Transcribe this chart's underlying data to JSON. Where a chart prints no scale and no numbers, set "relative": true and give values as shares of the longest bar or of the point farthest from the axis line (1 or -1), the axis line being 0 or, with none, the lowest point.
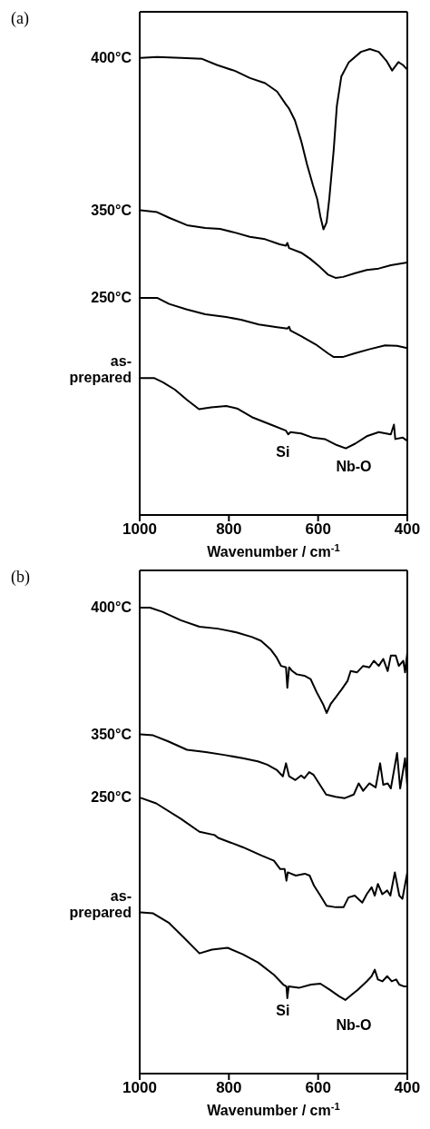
{
  "chart_data": [
    {
      "type": "line",
      "title": "(a)",
      "xlabel": "Wavenumber / cm$^{-1}$",
      "relative": true,
      "xlim": [
        1000,
        400
      ],
      "xticks": [
        1000,
        800,
        600,
        400
      ],
      "series": [
        {
          "name": "400°C",
          "color": "#000000",
          "x": [
            998,
            961,
            907,
            860,
            827,
            786,
            753,
            719,
            692,
            672,
            665,
            652,
            638,
            625,
            612,
            602,
            595,
            588,
            581,
            575,
            565,
            558,
            548,
            531,
            504,
            484,
            464,
            447,
            434,
            420,
            410,
            400
          ],
          "values": [
            0.981,
            0.983,
            0.981,
            0.979,
            0.966,
            0.953,
            0.938,
            0.927,
            0.909,
            0.881,
            0.872,
            0.847,
            0.803,
            0.753,
            0.709,
            0.678,
            0.641,
            0.613,
            0.628,
            0.678,
            0.784,
            0.878,
            0.941,
            0.972,
            0.994,
            1.0,
            0.994,
            0.975,
            0.954,
            0.972,
            0.966,
            0.956
          ]
        },
        {
          "name": "350°C",
          "color": "#000000",
          "x": [
            998,
            961,
            934,
            894,
            853,
            820,
            786,
            753,
            719,
            686,
            672,
            669,
            665,
            638,
            618,
            598,
            578,
            561,
            544,
            517,
            491,
            464,
            437,
            400
          ],
          "values": [
            0.654,
            0.65,
            0.638,
            0.622,
            0.616,
            0.614,
            0.606,
            0.597,
            0.592,
            0.581,
            0.578,
            0.584,
            0.573,
            0.563,
            0.55,
            0.534,
            0.516,
            0.509,
            0.511,
            0.519,
            0.526,
            0.529,
            0.536,
            0.542
          ]
        },
        {
          "name": "250°C",
          "color": "#000000",
          "x": [
            998,
            961,
            934,
            894,
            853,
            806,
            773,
            733,
            692,
            669,
            665,
            662,
            638,
            605,
            578,
            565,
            545,
            518,
            484,
            450,
            423,
            400
          ],
          "values": [
            0.466,
            0.466,
            0.453,
            0.441,
            0.431,
            0.425,
            0.419,
            0.409,
            0.403,
            0.4,
            0.404,
            0.396,
            0.384,
            0.366,
            0.347,
            0.339,
            0.339,
            0.347,
            0.356,
            0.364,
            0.363,
            0.358
          ]
        },
        {
          "name": "as-prepared",
          "color": "#000000",
          "x": [
            998,
            968,
            948,
            921,
            894,
            867,
            840,
            806,
            780,
            746,
            706,
            672,
            667,
            662,
            638,
            612,
            585,
            558,
            538,
            517,
            491,
            464,
            437,
            430,
            427,
            410,
            400
          ],
          "values": [
            0.294,
            0.294,
            0.285,
            0.269,
            0.247,
            0.227,
            0.231,
            0.234,
            0.228,
            0.209,
            0.194,
            0.181,
            0.173,
            0.178,
            0.175,
            0.166,
            0.163,
            0.15,
            0.143,
            0.153,
            0.169,
            0.178,
            0.173,
            0.194,
            0.163,
            0.166,
            0.159
          ]
        }
      ],
      "annotations": [
        "Si",
        "Nb-O"
      ]
    },
    {
      "type": "line",
      "title": "(b)",
      "xlabel": "Wavenumber / cm$^{-1}$",
      "relative": true,
      "xlim": [
        1000,
        400
      ],
      "xticks": [
        1000,
        800,
        600,
        400
      ],
      "series": [
        {
          "name": "400°C",
          "color": "#000000",
          "x": [
            998,
            977,
            949,
            908,
            866,
            825,
            783,
            748,
            728,
            707,
            693,
            683,
            672,
            669,
            665,
            658,
            648,
            631,
            617,
            603,
            589,
            581,
            572,
            561,
            547,
            534,
            527,
            513,
            499,
            485,
            475,
            464,
            454,
            444,
            437,
            426,
            419,
            409,
            405,
            400
          ],
          "values": [
            1.0,
            1.0,
            0.991,
            0.973,
            0.959,
            0.955,
            0.947,
            0.937,
            0.929,
            0.911,
            0.893,
            0.875,
            0.872,
            0.828,
            0.872,
            0.864,
            0.857,
            0.854,
            0.847,
            0.818,
            0.793,
            0.774,
            0.793,
            0.807,
            0.825,
            0.843,
            0.864,
            0.861,
            0.875,
            0.872,
            0.886,
            0.875,
            0.89,
            0.864,
            0.897,
            0.897,
            0.875,
            0.886,
            0.861,
            0.904
          ]
        },
        {
          "name": "350°C",
          "color": "#000000",
          "x": [
            998,
            970,
            936,
            894,
            852,
            811,
            769,
            735,
            714,
            693,
            679,
            672,
            665,
            651,
            638,
            631,
            620,
            610,
            596,
            582,
            561,
            541,
            520,
            509,
            499,
            485,
            471,
            461,
            454,
            444,
            437,
            423,
            416,
            405,
            400
          ],
          "values": [
            0.728,
            0.726,
            0.713,
            0.695,
            0.69,
            0.684,
            0.677,
            0.67,
            0.663,
            0.652,
            0.638,
            0.666,
            0.638,
            0.63,
            0.64,
            0.634,
            0.647,
            0.641,
            0.62,
            0.599,
            0.594,
            0.591,
            0.599,
            0.623,
            0.607,
            0.623,
            0.614,
            0.666,
            0.62,
            0.623,
            0.612,
            0.688,
            0.612,
            0.677,
            0.616
          ]
        },
        {
          "name": "250°C",
          "color": "#000000",
          "x": [
            998,
            963,
            908,
            866,
            832,
            824,
            769,
            727,
            699,
            685,
            675,
            671,
            668,
            650,
            630,
            619,
            609,
            595,
            581,
            560,
            543,
            532,
            518,
            501,
            491,
            480,
            473,
            466,
            456,
            445,
            438,
            428,
            418,
            411,
            400
          ],
          "values": [
            0.592,
            0.58,
            0.547,
            0.519,
            0.512,
            0.506,
            0.486,
            0.468,
            0.457,
            0.439,
            0.439,
            0.414,
            0.432,
            0.425,
            0.429,
            0.425,
            0.403,
            0.382,
            0.36,
            0.357,
            0.357,
            0.378,
            0.382,
            0.367,
            0.385,
            0.4,
            0.382,
            0.407,
            0.385,
            0.393,
            0.382,
            0.432,
            0.382,
            0.375,
            0.432
          ]
        },
        {
          "name": "as-prepared",
          "color": "#000000",
          "x": [
            998,
            970,
            935,
            901,
            866,
            838,
            803,
            769,
            734,
            699,
            678,
            671,
            669,
            666,
            643,
            616,
            595,
            574,
            553,
            539,
            525,
            511,
            491,
            480,
            473,
            466,
            456,
            445,
            435,
            425,
            418,
            407,
            400
          ],
          "values": [
            0.346,
            0.344,
            0.324,
            0.292,
            0.258,
            0.266,
            0.27,
            0.256,
            0.238,
            0.212,
            0.191,
            0.187,
            0.162,
            0.187,
            0.184,
            0.191,
            0.193,
            0.18,
            0.166,
            0.158,
            0.169,
            0.18,
            0.198,
            0.209,
            0.223,
            0.202,
            0.198,
            0.209,
            0.198,
            0.202,
            0.191,
            0.187,
            0.187
          ]
        }
      ],
      "annotations": [
        "Si",
        "Nb-O"
      ]
    }
  ]
}
